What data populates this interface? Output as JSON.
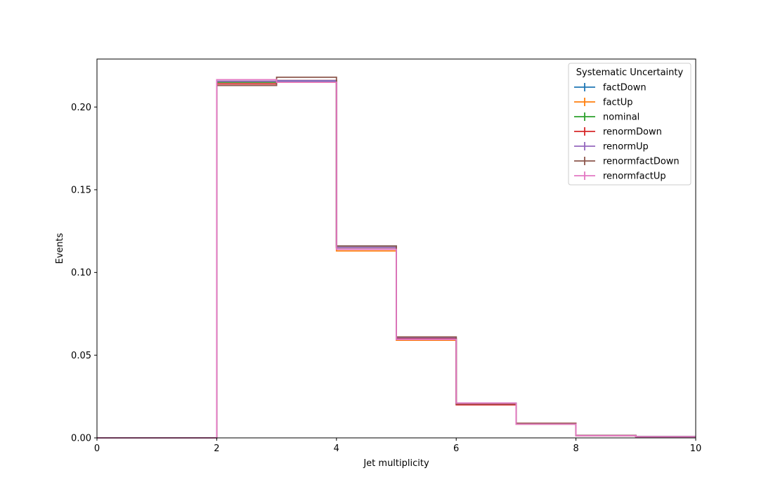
{
  "chart_data": {
    "type": "line",
    "step": true,
    "xlabel": "Jet multiplicity",
    "ylabel": "Events",
    "xlim": [
      0,
      10
    ],
    "ylim": [
      0,
      0.229
    ],
    "xticks": [
      "0",
      "2",
      "4",
      "6",
      "8",
      "10"
    ],
    "yticks": [
      "0.00",
      "0.05",
      "0.10",
      "0.15",
      "0.20"
    ],
    "grid": false,
    "legend": {
      "title": "Systematic Uncertainty",
      "placement": "top-right"
    },
    "bin_edges": [
      0,
      1,
      2,
      3,
      4,
      5,
      6,
      7,
      8,
      9,
      10
    ],
    "series": [
      {
        "name": "factDown",
        "color": "#1f77b4",
        "values": [
          0,
          0,
          0.2155,
          0.2155,
          0.116,
          0.061,
          0.021,
          0.0085,
          0.0015,
          0.0008
        ]
      },
      {
        "name": "factUp",
        "color": "#ff7f0e",
        "values": [
          0,
          0,
          0.215,
          0.215,
          0.113,
          0.059,
          0.0205,
          0.0083,
          0.0013,
          0.0007
        ]
      },
      {
        "name": "nominal",
        "color": "#2ca02c",
        "values": [
          0,
          0,
          0.215,
          0.216,
          0.115,
          0.06,
          0.0207,
          0.0084,
          0.0014,
          0.0007
        ]
      },
      {
        "name": "renormDown",
        "color": "#d62728",
        "values": [
          0,
          0,
          0.214,
          0.216,
          0.115,
          0.06,
          0.02,
          0.0088,
          0.0014,
          0.0007
        ]
      },
      {
        "name": "renormUp",
        "color": "#9467bd",
        "values": [
          0,
          0,
          0.2155,
          0.216,
          0.115,
          0.0605,
          0.021,
          0.0084,
          0.0014,
          0.0007
        ]
      },
      {
        "name": "renormfactDown",
        "color": "#8c564b",
        "values": [
          0,
          0,
          0.213,
          0.218,
          0.116,
          0.061,
          0.0205,
          0.0088,
          0.0015,
          0.0008
        ]
      },
      {
        "name": "renormfactUp",
        "color": "#e377c2",
        "values": [
          0,
          0,
          0.2165,
          0.215,
          0.114,
          0.0595,
          0.021,
          0.0083,
          0.0013,
          0.0007
        ]
      }
    ]
  }
}
